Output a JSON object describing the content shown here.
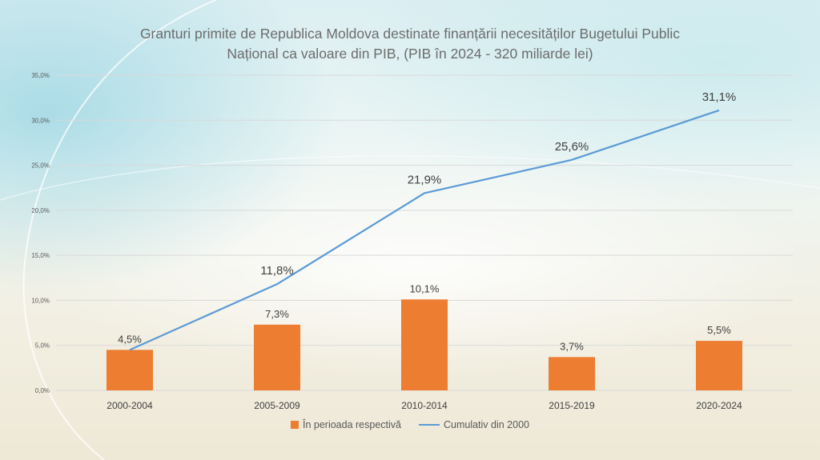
{
  "title_line1": "Granturi primite de Republica Moldova destinate finanțării necesităților Bugetului Public",
  "title_line2": "Național ca valoare din PIB,  (PIB în 2024 - 320 miliarde lei)",
  "colors": {
    "bar": "#ed7d31",
    "line": "#5b9bd5",
    "grid": "#d9d9d9"
  },
  "chart_data": {
    "type": "bar",
    "title": "Granturi primite de Republica Moldova destinate finanțării necesităților Bugetului Public Național ca valoare din PIB,  (PIB în 2024 - 320 miliarde lei)",
    "categories": [
      "2000-2004",
      "2005-2009",
      "2010-2014",
      "2015-2019",
      "2020-2024"
    ],
    "series": [
      {
        "name": "În perioada respectivă",
        "type": "bar",
        "values": [
          4.5,
          7.3,
          10.1,
          3.7,
          5.5
        ],
        "labels": [
          "4,5%",
          "7,3%",
          "10,1%",
          "3,7%",
          "5,5%"
        ]
      },
      {
        "name": "Cumulativ din 2000",
        "type": "line",
        "values": [
          4.5,
          11.8,
          21.9,
          25.6,
          31.1
        ],
        "labels": [
          "",
          "11,8%",
          "21,9%",
          "25,6%",
          "31,1%"
        ]
      }
    ],
    "ylim": [
      0,
      35
    ],
    "yticks": [
      "0,0%",
      "5,0%",
      "10,0%",
      "15,0%",
      "20,0%",
      "25,0%",
      "30,0%",
      "35,0%"
    ],
    "grid": true,
    "legend": "bottom"
  }
}
